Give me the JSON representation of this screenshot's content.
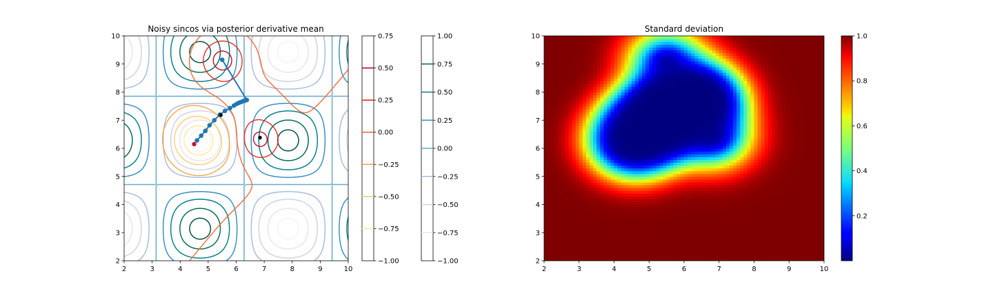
{
  "chart_data": [
    {
      "type": "contour",
      "title": "Noisy sincos via posterior derivative mean",
      "xlabel": "",
      "ylabel": "",
      "xlim": [
        2,
        10
      ],
      "ylim": [
        2,
        10
      ],
      "xticks": [
        2,
        3,
        4,
        5,
        6,
        7,
        8,
        9,
        10
      ],
      "yticks": [
        2,
        3,
        4,
        5,
        6,
        7,
        8,
        9,
        10
      ],
      "objective_levels": [
        -1.0,
        -0.75,
        -0.5,
        -0.25,
        0.0,
        0.25,
        0.5,
        0.75,
        1.0
      ],
      "derivative_levels": [
        -1.0,
        -0.75,
        -0.5,
        -0.25,
        0.0,
        0.25,
        0.5,
        0.75
      ],
      "colorbar_derivative": {
        "ticks": [
          "0.75",
          "0.50",
          "0.25",
          "0.00",
          "−0.25",
          "−0.50",
          "−0.75",
          "−1.00"
        ],
        "values": [
          0.75,
          0.5,
          0.25,
          0.0,
          -0.25,
          -0.5,
          -0.75,
          -1.0
        ],
        "range": [
          -1.0,
          0.75
        ]
      },
      "colorbar_objective": {
        "ticks": [
          "1.00",
          "0.75",
          "0.50",
          "0.25",
          "0.00",
          "−0.25",
          "−0.50",
          "−0.75",
          "−1.00"
        ],
        "values": [
          1.0,
          0.75,
          0.5,
          0.25,
          0.0,
          -0.25,
          -0.5,
          -0.75,
          -1.0
        ],
        "range": [
          -1.0,
          1.0
        ]
      },
      "path": {
        "x": [
          4.6,
          4.75,
          4.9,
          5.05,
          5.22,
          5.42,
          5.6,
          5.78,
          5.92,
          6.02,
          6.1,
          6.18,
          6.25,
          6.32,
          6.38,
          5.5
        ],
        "y": [
          6.28,
          6.45,
          6.62,
          6.82,
          7.0,
          7.2,
          7.33,
          7.43,
          7.52,
          7.58,
          7.62,
          7.65,
          7.68,
          7.7,
          7.72,
          9.15
        ]
      },
      "observations": {
        "x": [
          5.45,
          6.85
        ],
        "y": [
          7.18,
          6.38
        ]
      },
      "start_point": {
        "x": 4.5,
        "y": 6.15
      }
    },
    {
      "type": "heatmap",
      "title": "Standard deviation",
      "xlabel": "",
      "ylabel": "",
      "xlim": [
        2,
        10
      ],
      "ylim": [
        2,
        10
      ],
      "xticks": [
        2,
        3,
        4,
        5,
        6,
        7,
        8,
        9,
        10
      ],
      "yticks": [
        2,
        3,
        4,
        5,
        6,
        7,
        8,
        9,
        10
      ],
      "colormap": "jet",
      "range": [
        0.0,
        1.0
      ],
      "colorbar": {
        "ticks": [
          "1.0",
          "0.8",
          "0.6",
          "0.4",
          "0.2"
        ],
        "values": [
          1.0,
          0.8,
          0.6,
          0.4,
          0.2
        ]
      },
      "data_points": {
        "x": [
          4.6,
          4.75,
          4.9,
          5.05,
          5.22,
          5.42,
          5.6,
          5.78,
          5.92,
          6.02,
          6.1,
          6.18,
          6.25,
          6.32,
          6.38,
          5.5,
          5.45,
          6.85,
          4.5
        ],
        "y": [
          6.28,
          6.45,
          6.62,
          6.82,
          7.0,
          7.2,
          7.33,
          7.43,
          7.52,
          7.58,
          7.62,
          7.65,
          7.68,
          7.7,
          7.72,
          9.15,
          7.18,
          6.38,
          6.15
        ]
      }
    }
  ]
}
